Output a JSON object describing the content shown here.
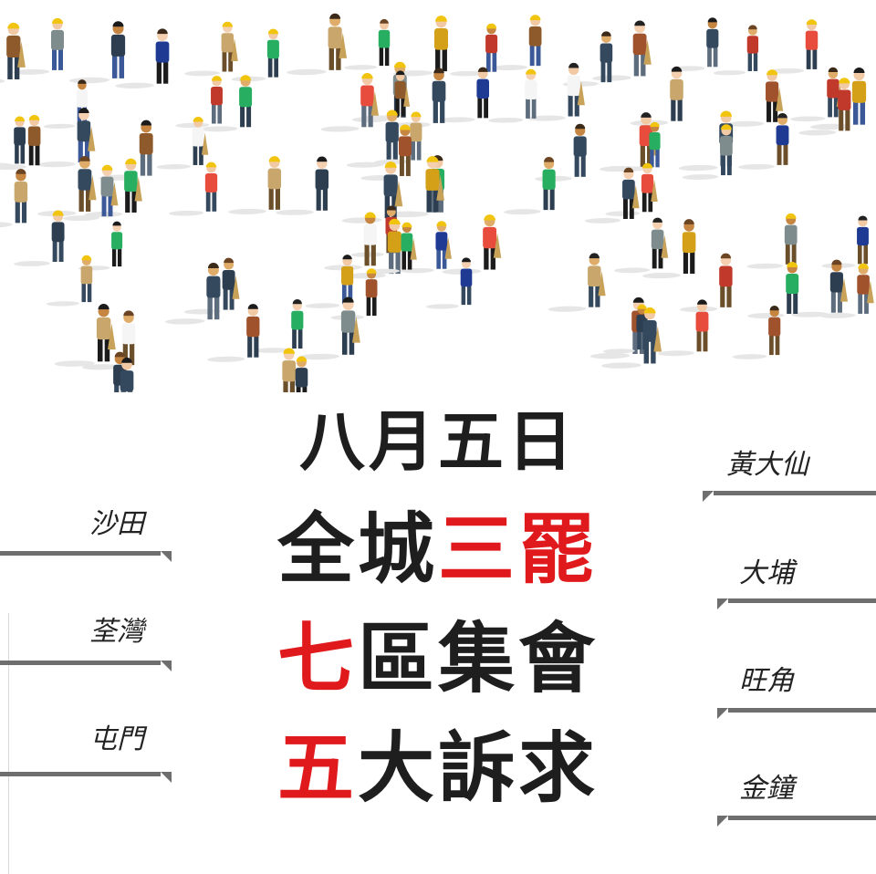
{
  "headline": {
    "date": "八月五日",
    "line2_black": "全城",
    "line2_red": "三罷",
    "line3_red": "七",
    "line3_black": "區集會",
    "line4_red": "五",
    "line4_black": "大訴求"
  },
  "districts_left": [
    "沙田",
    "荃灣",
    "屯門"
  ],
  "districts_right": [
    "黃大仙",
    "大埔",
    "旺角",
    "金鐘"
  ],
  "colors": {
    "red": "#e0191c",
    "black": "#1e1e1e",
    "pointer_gray": "#6e6e6e"
  },
  "illustration": "crowd-of-people-with-umbrellas-and-hard-hats"
}
